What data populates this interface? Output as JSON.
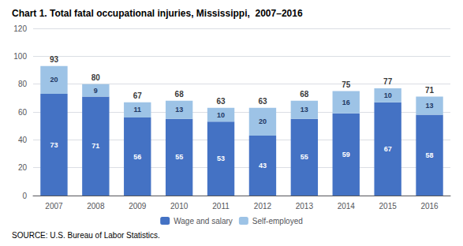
{
  "chart_data": {
    "type": "bar",
    "title": "Chart 1. Total fatal occupational injuries, Mississippi,  2007–2016",
    "categories": [
      "2007",
      "2008",
      "2009",
      "2010",
      "2011",
      "2012",
      "2013",
      "2014",
      "2015",
      "2016"
    ],
    "series": [
      {
        "name": "Wage and salary",
        "color": "#4472C4",
        "values": [
          73,
          71,
          56,
          55,
          53,
          43,
          55,
          59,
          67,
          58
        ]
      },
      {
        "name": "Self-employed",
        "color": "#9DC3E6",
        "values": [
          20,
          9,
          11,
          13,
          10,
          20,
          13,
          16,
          10,
          13
        ]
      }
    ],
    "totals": [
      93,
      80,
      67,
      68,
      63,
      63,
      68,
      75,
      77,
      71
    ],
    "stacked": true,
    "data_labels": true,
    "ylim": [
      0,
      120
    ],
    "yticks": [
      0,
      20,
      40,
      60,
      80,
      100,
      120
    ],
    "grid": true,
    "legend": "bottom",
    "source": "SOURCE: U.S. Bureau of Labor Statistics."
  }
}
